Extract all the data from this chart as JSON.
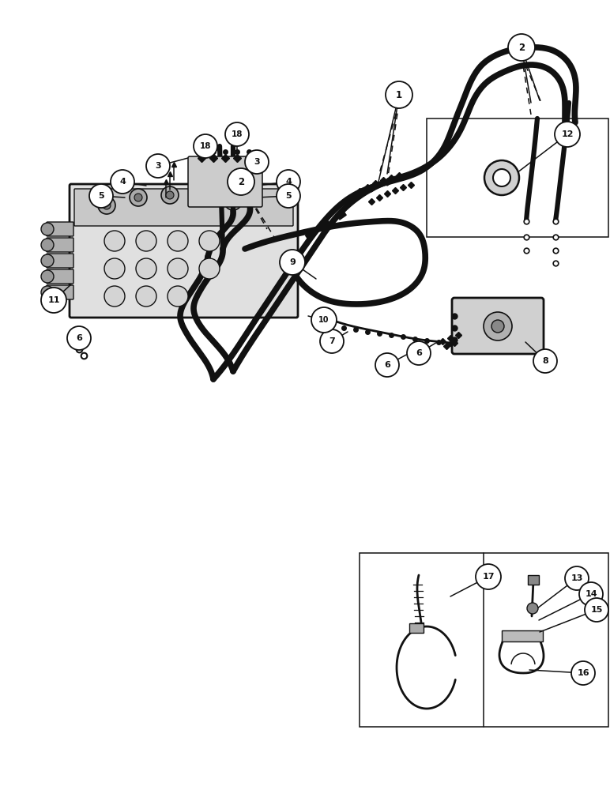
{
  "bg_color": "#ffffff",
  "line_color": "#111111",
  "figure_width": 7.72,
  "figure_height": 10.0
}
